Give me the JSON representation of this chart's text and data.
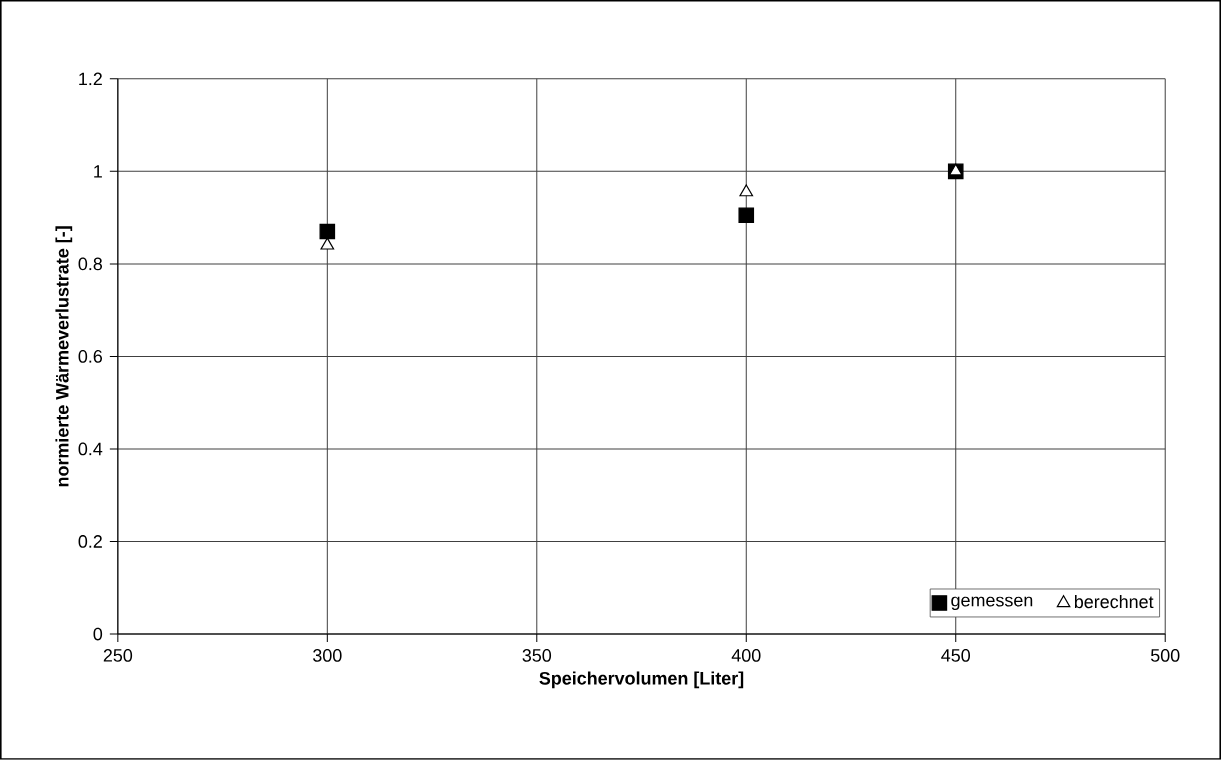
{
  "chart_data": {
    "type": "scatter",
    "xlabel": "Speichervolumen [Liter]",
    "ylabel": "normierte Wärmeverlustrate [-]",
    "x": [
      300,
      400,
      450
    ],
    "series": [
      {
        "name": "gemessen",
        "color": "#000000",
        "marker": "square",
        "values": [
          0.87,
          0.905,
          1.0
        ]
      },
      {
        "name": "berechnet",
        "color": "#ffffff",
        "marker": "triangle",
        "values": [
          0.84,
          0.955,
          1.0
        ]
      }
    ],
    "xlim": [
      250,
      500
    ],
    "ylim": [
      0,
      1.2
    ],
    "xticks": [
      250,
      300,
      350,
      400,
      450,
      500
    ],
    "yticks": [
      0,
      {
        "value": 0.2,
        "label": "0.2"
      },
      {
        "value": 0.4,
        "label": "0.4"
      },
      {
        "value": 0.6,
        "label": "0.6"
      },
      {
        "value": 0.8,
        "label": "0.8"
      },
      1,
      {
        "value": 1.2,
        "label": "1.2"
      }
    ],
    "grid": true,
    "legend": "bottom right"
  }
}
